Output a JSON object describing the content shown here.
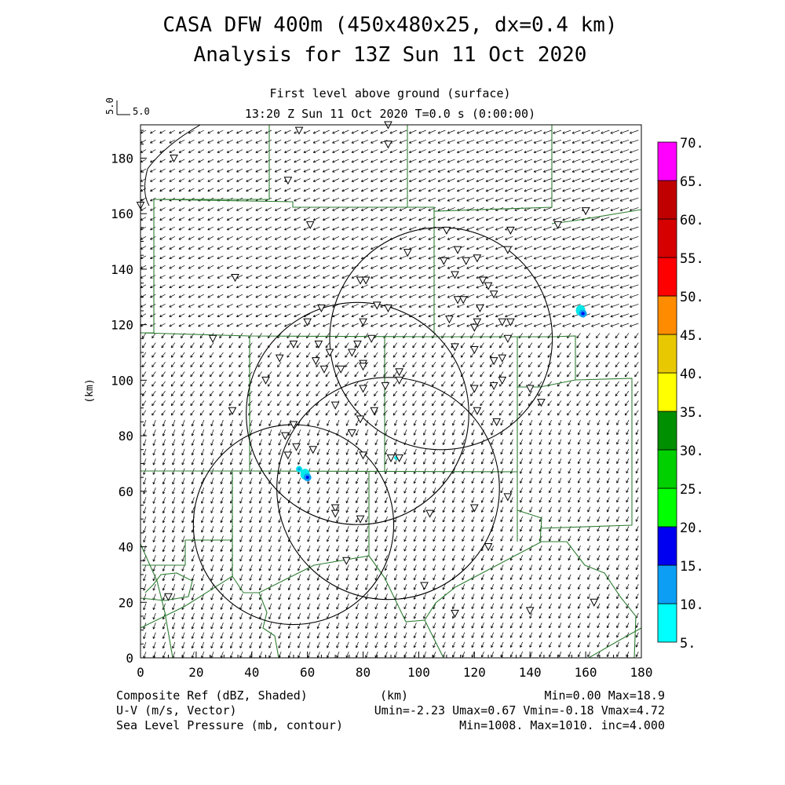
{
  "header": {
    "title_line1": "CASA DFW 400m (450x480x25, dx=0.4 km)",
    "title_line2": "Analysis for 13Z Sun 11 Oct 2020",
    "subtitle": "First level above ground (surface)",
    "time_line": "13:20 Z Sun 11 Oct 2020   T=0.0 s (0:00:00)",
    "vector_scale_vertical": "5.0",
    "vector_scale_horizontal": "5.0"
  },
  "footer": {
    "field1_label": "Composite Ref (dBZ, Shaded)",
    "field1_stats": "Min=0.00 Max=18.9",
    "xaxis_unit": "(km)",
    "field2_label": "U-V (m/s, Vector)",
    "field2_stats": "Umin=-2.23 Umax=0.67 Vmin=-0.18 Vmax=4.72",
    "field3_label": "Sea Level Pressure (mb, contour)",
    "field3_stats": "Min=1008. Max=1010. inc=4.000"
  },
  "colors": {
    "county_lines": "#2e7d32",
    "contours": "#000000",
    "refl_light": "#00e8e8",
    "refl_mid": "#0a9ef5",
    "refl_dark": "#0010ee"
  },
  "chart_data": {
    "type": "heatmap",
    "xlabel": "",
    "ylabel": "(km)",
    "xlim": [
      0,
      180
    ],
    "ylim": [
      0,
      192
    ],
    "xticks": [
      "0",
      "20",
      "40",
      "60",
      "80",
      "100",
      "120",
      "140",
      "160",
      "180"
    ],
    "yticks": [
      "0",
      "20",
      "40",
      "60",
      "80",
      "100",
      "120",
      "140",
      "160",
      "180"
    ],
    "colorbar": {
      "labels": [
        "5.",
        "10.",
        "15.",
        "20.",
        "25.",
        "30.",
        "35.",
        "40.",
        "45.",
        "50.",
        "55.",
        "60.",
        "65.",
        "70."
      ],
      "colors": [
        "#00ffff",
        "#0c9ef5",
        "#0000f0",
        "#00ff00",
        "#00cf00",
        "#008f00",
        "#ffff00",
        "#e8c800",
        "#ff8c00",
        "#ff0000",
        "#d60000",
        "#c00000",
        "#ff00ff"
      ]
    },
    "radar_rings": [
      {
        "cx": 55,
        "cy": 48,
        "r": 36
      },
      {
        "cx": 78,
        "cy": 88,
        "r": 40
      },
      {
        "cx": 89,
        "cy": 61,
        "r": 40
      },
      {
        "cx": 108,
        "cy": 115,
        "r": 40
      }
    ],
    "reflectivity_cells": [
      {
        "x": 159,
        "y": 124,
        "dbz": 18.9
      },
      {
        "x": 60,
        "y": 65,
        "dbz": 15
      },
      {
        "x": 57,
        "y": 68,
        "dbz": 8
      },
      {
        "x": 92,
        "y": 72,
        "dbz": 6
      }
    ],
    "stations": [
      [
        57,
        190
      ],
      [
        89,
        192
      ],
      [
        89,
        185
      ],
      [
        12,
        180
      ],
      [
        53,
        172
      ],
      [
        0,
        163
      ],
      [
        61,
        156
      ],
      [
        150,
        156
      ],
      [
        160,
        161
      ],
      [
        110,
        154
      ],
      [
        133,
        154
      ],
      [
        114,
        147
      ],
      [
        132,
        147
      ],
      [
        96,
        146
      ],
      [
        117,
        143
      ],
      [
        121,
        144
      ],
      [
        109,
        143
      ],
      [
        113,
        138
      ],
      [
        34,
        137
      ],
      [
        79,
        136
      ],
      [
        81,
        136
      ],
      [
        123,
        136
      ],
      [
        125,
        134
      ],
      [
        127,
        131
      ],
      [
        114,
        129
      ],
      [
        116,
        129
      ],
      [
        85,
        127
      ],
      [
        89,
        126
      ],
      [
        65,
        126
      ],
      [
        122,
        126
      ],
      [
        111,
        122
      ],
      [
        121,
        121
      ],
      [
        130,
        121
      ],
      [
        133,
        121
      ],
      [
        80,
        121
      ],
      [
        60,
        121
      ],
      [
        120,
        119
      ],
      [
        26,
        115
      ],
      [
        113,
        112
      ],
      [
        132,
        115
      ],
      [
        83,
        115
      ],
      [
        55,
        113
      ],
      [
        64,
        113
      ],
      [
        78,
        113
      ],
      [
        76,
        110
      ],
      [
        68,
        110
      ],
      [
        50,
        108
      ],
      [
        120,
        111
      ],
      [
        127,
        107
      ],
      [
        130,
        108
      ],
      [
        63,
        107
      ],
      [
        80,
        106
      ],
      [
        66,
        104
      ],
      [
        72,
        104
      ],
      [
        80,
        105
      ],
      [
        93,
        103
      ],
      [
        45,
        100
      ],
      [
        88,
        98
      ],
      [
        93,
        100
      ],
      [
        80,
        97
      ],
      [
        120,
        97
      ],
      [
        127,
        98
      ],
      [
        130,
        100
      ],
      [
        140,
        97
      ],
      [
        144,
        92
      ],
      [
        33,
        89
      ],
      [
        70,
        91
      ],
      [
        84,
        89
      ],
      [
        79,
        86
      ],
      [
        121,
        89
      ],
      [
        128,
        85
      ],
      [
        55,
        84
      ],
      [
        52,
        80
      ],
      [
        76,
        81
      ],
      [
        56,
        76
      ],
      [
        62,
        75
      ],
      [
        80,
        73
      ],
      [
        90,
        72
      ],
      [
        93,
        72
      ],
      [
        53,
        73
      ],
      [
        132,
        58
      ],
      [
        104,
        52
      ],
      [
        120,
        54
      ],
      [
        70,
        54
      ],
      [
        70,
        52
      ],
      [
        79,
        50
      ],
      [
        74,
        35
      ],
      [
        125,
        40
      ],
      [
        102,
        26
      ],
      [
        113,
        16
      ],
      [
        140,
        17
      ],
      [
        163,
        20
      ],
      [
        10,
        22
      ]
    ]
  }
}
